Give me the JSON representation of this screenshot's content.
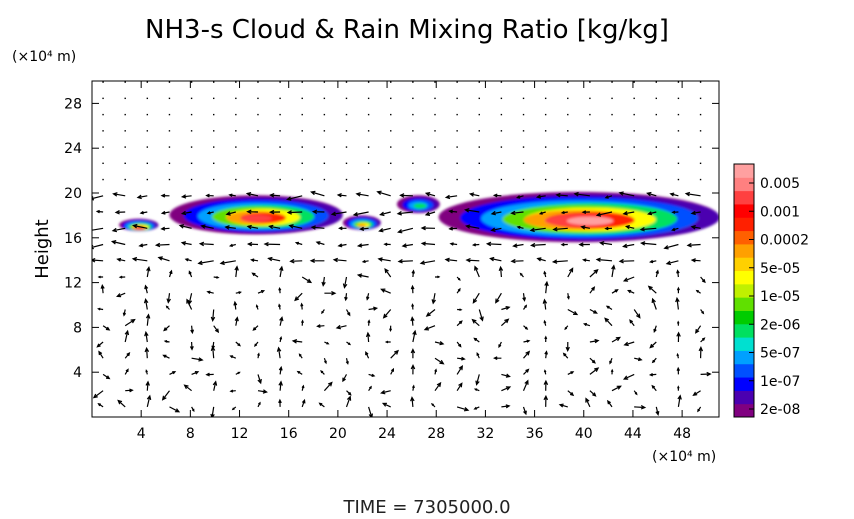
{
  "chart_data": {
    "type": "heatmap",
    "title": "NH3-s Cloud & Rain Mixing Ratio [kg/kg]",
    "xlabel": "",
    "x_unit": "(×10⁴ m)",
    "ylabel": "Height",
    "y_unit": "(×10⁴ m)",
    "xlim": [
      0,
      51
    ],
    "ylim": [
      0,
      30
    ],
    "x_ticks": [
      4,
      8,
      12,
      16,
      20,
      24,
      28,
      32,
      36,
      40,
      44,
      48
    ],
    "y_ticks": [
      4,
      8,
      12,
      16,
      20,
      24,
      28
    ],
    "time_label": "TIME = 7305000.0",
    "colorbar": {
      "levels": [
        "2e-08",
        "1e-07",
        "5e-07",
        "2e-06",
        "1e-05",
        "5e-05",
        "0.0002",
        "0.001",
        "0.005"
      ],
      "colors": [
        "#800080",
        "#4b00b0",
        "#0000ff",
        "#0050ff",
        "#00a0ff",
        "#00e0d0",
        "#00e060",
        "#00cc00",
        "#60e000",
        "#c0f000",
        "#ffff00",
        "#ffd000",
        "#ffa000",
        "#ff6000",
        "#ff2000",
        "#ff0000",
        "#ff4040",
        "#ff8080",
        "#ffa0a0"
      ]
    },
    "cloud_regions": [
      {
        "x_range": [
          2.2,
          5.4
        ],
        "y_range": [
          16.6,
          17.7
        ],
        "peak": "0.001"
      },
      {
        "x_range": [
          6.3,
          20.4
        ],
        "y_range": [
          16.3,
          19.8
        ],
        "peak": "0.001"
      },
      {
        "x_range": [
          20.4,
          23.5
        ],
        "y_range": [
          16.7,
          18.0
        ],
        "peak": "5e-05"
      },
      {
        "x_range": [
          24.8,
          28.3
        ],
        "y_range": [
          18.2,
          19.8
        ],
        "peak": "2e-06"
      },
      {
        "x_range": [
          28.2,
          51.0
        ],
        "y_range": [
          15.6,
          20.1
        ],
        "peak": "0.005"
      }
    ],
    "wind_vectors": "velocity arrows on a regular grid over the full domain"
  }
}
